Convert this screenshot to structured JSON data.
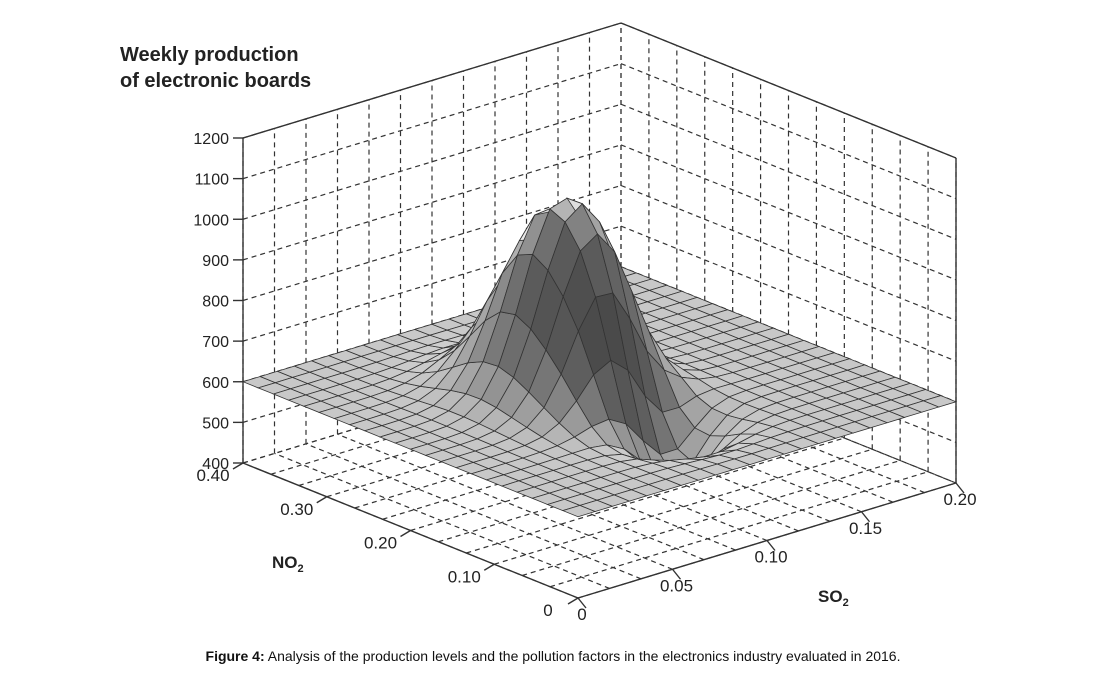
{
  "chart_data": {
    "type": "surface3d",
    "title": "",
    "zlabel_line1": "Weekly production",
    "zlabel_line2": "of electronic boards",
    "xlabel": "SO",
    "xlabel_sub": "2",
    "ylabel": "NO",
    "ylabel_sub": "2",
    "z_ticks": [
      "1200",
      "1100",
      "1000",
      "900",
      "800",
      "700",
      "600",
      "500",
      "400"
    ],
    "z_tick_values": [
      1200,
      1100,
      1000,
      900,
      800,
      700,
      600,
      500,
      400
    ],
    "x_ticks": [
      "0",
      "0.05",
      "0.10",
      "0.15",
      "0.20"
    ],
    "x_tick_values": [
      0,
      0.05,
      0.1,
      0.15,
      0.2
    ],
    "y_ticks": [
      "0",
      "0.10",
      "0.20",
      "0.30",
      "0.40"
    ],
    "y_tick_values": [
      0,
      0.1,
      0.2,
      0.3,
      0.4
    ],
    "xlim": [
      0,
      0.2
    ],
    "ylim": [
      0,
      0.4
    ],
    "zlim": [
      400,
      1200
    ],
    "grid": true,
    "base_level": 600,
    "surface_features": [
      {
        "kind": "peak",
        "so2": 0.085,
        "no2": 0.225,
        "value": 1040
      },
      {
        "kind": "ridge",
        "so2": 0.105,
        "no2": 0.185,
        "value": 770
      },
      {
        "kind": "ridge",
        "so2": 0.085,
        "no2": 0.155,
        "value": 735
      },
      {
        "kind": "trough",
        "so2": 0.095,
        "no2": 0.115,
        "value": 415
      },
      {
        "kind": "dip",
        "so2": 0.108,
        "no2": 0.155,
        "value": 520
      }
    ]
  },
  "caption": {
    "label": "Figure 4:",
    "text": " Analysis of the production levels and the pollution factors in the electronics industry evaluated in 2016."
  }
}
